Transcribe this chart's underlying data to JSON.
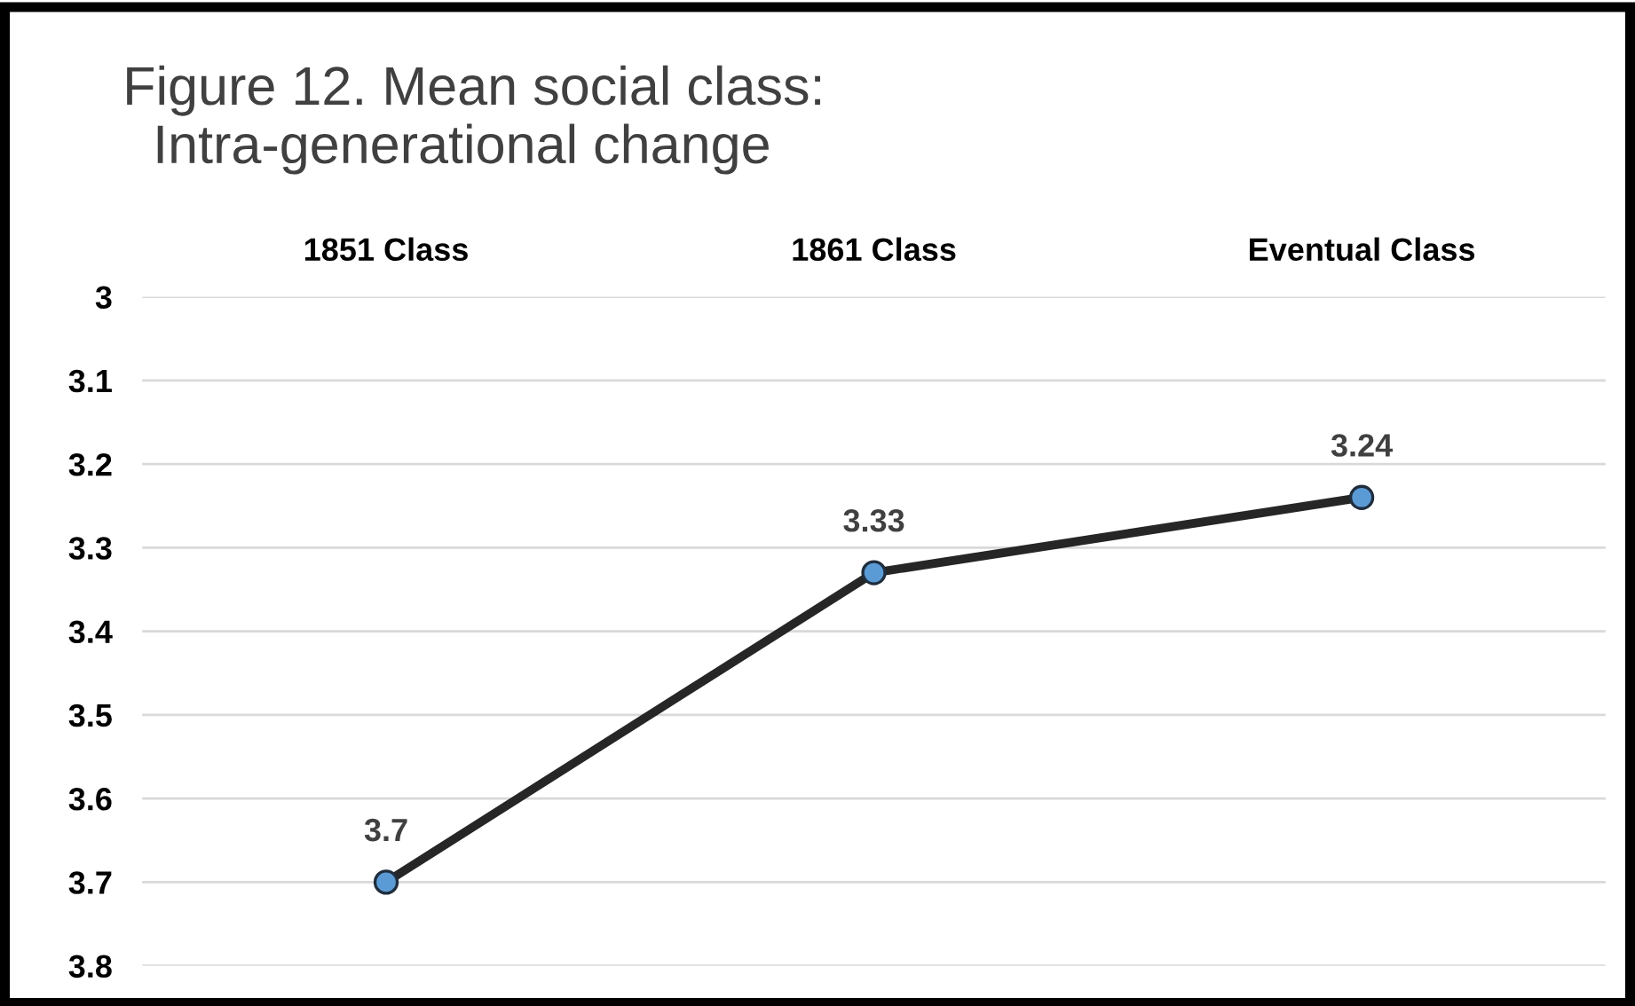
{
  "chart_data": {
    "type": "line",
    "title": "Figure 12. Mean social class:\n  Intra-generational change",
    "categories": [
      "1851 Class",
      "1861 Class",
      "Eventual Class"
    ],
    "series": [
      {
        "color": "#262626",
        "values": [
          3.7,
          3.33,
          3.24
        ]
      }
    ],
    "ylim": [
      3.8,
      3
    ],
    "yticks": [
      3,
      3.1,
      3.2,
      3.3,
      3.4,
      3.5,
      3.6,
      3.7,
      3.8
    ],
    "grid": "y",
    "marker": "circle",
    "line_style": "solid",
    "data_labels": true,
    "legend": false
  }
}
